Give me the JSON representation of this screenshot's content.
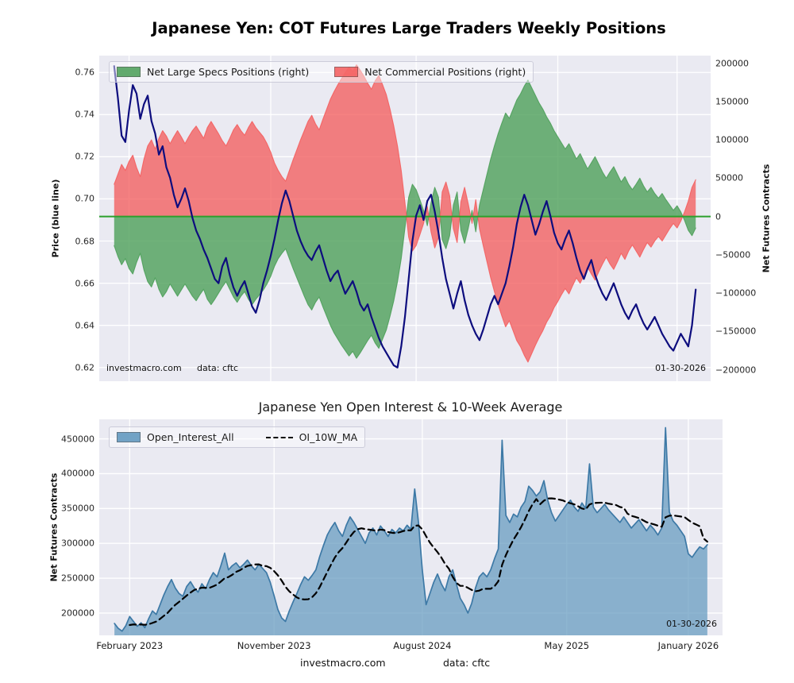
{
  "page": {
    "footer_watermark": "investmacro.com",
    "footer_source": "data: cftc"
  },
  "top_chart": {
    "watermark": "investmacro.com",
    "source": "data: cftc",
    "date_stamp": "01-30-2026"
  },
  "bottom_chart": {
    "date_stamp": "01-30-2026"
  },
  "chart_data": [
    {
      "type": "area+line",
      "title": "Japanese Yen: COT Futures Large Traders Weekly Positions",
      "x": {
        "unit": "weeks",
        "min": -4,
        "max": 160,
        "tick_positions": [
          4,
          42,
          81,
          119,
          151
        ],
        "tick_labels": [
          "February 2023",
          "November 2023",
          "August 2024",
          "May 2025",
          "January 2026"
        ],
        "tick_labels_shown": false
      },
      "left_axis": {
        "label": "Price (blue line)",
        "lim": [
          0.6135,
          0.768
        ],
        "ticks": [
          0.62,
          0.64,
          0.66,
          0.68,
          0.7,
          0.72,
          0.74,
          0.76
        ],
        "tick_labels": [
          "0.62",
          "0.64",
          "0.66",
          "0.68",
          "0.70",
          "0.72",
          "0.74",
          "0.76"
        ]
      },
      "right_axis": {
        "label": "Net Futures Contracts",
        "lim": [
          -215000,
          210000
        ],
        "ticks": [
          -200000,
          -150000,
          -100000,
          -50000,
          0,
          50000,
          100000,
          150000,
          200000
        ],
        "tick_labels": [
          "−200000",
          "−150000",
          "−100000",
          "−50000",
          "0",
          "50000",
          "100000",
          "150000",
          "200000"
        ]
      },
      "zero_line": {
        "axis": "right",
        "value": 0,
        "color": "#2ca02c"
      },
      "series": [
        {
          "name": "Net Large Specs Positions (right)",
          "type": "area",
          "axis": "right",
          "color": "#4ea05a",
          "fill_alpha": 0.8,
          "values": [
            -38000,
            -52000,
            -63000,
            -55000,
            -68000,
            -75000,
            -60000,
            -48000,
            -70000,
            -85000,
            -92000,
            -80000,
            -95000,
            -105000,
            -98000,
            -88000,
            -96000,
            -104000,
            -96000,
            -88000,
            -96000,
            -104000,
            -110000,
            -102000,
            -95000,
            -108000,
            -115000,
            -108000,
            -100000,
            -92000,
            -85000,
            -95000,
            -105000,
            -112000,
            -104000,
            -98000,
            -108000,
            -115000,
            -108000,
            -102000,
            -96000,
            -88000,
            -78000,
            -65000,
            -55000,
            -48000,
            -42000,
            -55000,
            -68000,
            -80000,
            -92000,
            -104000,
            -115000,
            -122000,
            -112000,
            -105000,
            -118000,
            -130000,
            -142000,
            -152000,
            -160000,
            -168000,
            -175000,
            -182000,
            -176000,
            -185000,
            -178000,
            -170000,
            -162000,
            -155000,
            -165000,
            -172000,
            -160000,
            -148000,
            -130000,
            -110000,
            -85000,
            -55000,
            -15000,
            25000,
            42000,
            35000,
            22000,
            8000,
            -12000,
            18000,
            38000,
            25000,
            -30000,
            -42000,
            -25000,
            15000,
            32000,
            -18000,
            -35000,
            -15000,
            8000,
            -20000,
            15000,
            35000,
            55000,
            75000,
            92000,
            108000,
            122000,
            135000,
            128000,
            140000,
            152000,
            160000,
            170000,
            178000,
            168000,
            158000,
            148000,
            140000,
            130000,
            122000,
            112000,
            104000,
            96000,
            88000,
            95000,
            85000,
            75000,
            82000,
            72000,
            62000,
            70000,
            78000,
            68000,
            58000,
            50000,
            58000,
            65000,
            55000,
            45000,
            52000,
            42000,
            35000,
            42000,
            50000,
            40000,
            32000,
            38000,
            30000,
            24000,
            30000,
            22000,
            15000,
            8000,
            14000,
            6000,
            -5000,
            -18000,
            -25000,
            -15000
          ]
        },
        {
          "name": "Net Commercial Positions (right)",
          "type": "area",
          "axis": "right",
          "color": "#f45f5f",
          "fill_alpha": 0.78,
          "values": [
            42000,
            55000,
            68000,
            60000,
            72000,
            80000,
            64000,
            52000,
            75000,
            92000,
            100000,
            88000,
            102000,
            112000,
            105000,
            95000,
            104000,
            112000,
            104000,
            95000,
            104000,
            112000,
            118000,
            110000,
            102000,
            116000,
            124000,
            116000,
            108000,
            99000,
            92000,
            102000,
            113000,
            120000,
            112000,
            106000,
            116000,
            124000,
            116000,
            110000,
            104000,
            95000,
            84000,
            70000,
            60000,
            52000,
            46000,
            60000,
            74000,
            87000,
            100000,
            112000,
            124000,
            132000,
            121000,
            113000,
            127000,
            140000,
            153000,
            163000,
            172000,
            180000,
            188000,
            195000,
            189000,
            198000,
            191000,
            183000,
            174000,
            166000,
            177000,
            184000,
            172000,
            159000,
            140000,
            118000,
            92000,
            60000,
            18000,
            -27000,
            -45000,
            -38000,
            -24000,
            -9000,
            13000,
            -20000,
            -41000,
            -27000,
            32000,
            45000,
            27000,
            -16000,
            -34000,
            19000,
            38000,
            16000,
            -9000,
            22000,
            -16000,
            -38000,
            -59000,
            -80000,
            -98000,
            -115000,
            -130000,
            -144000,
            -136000,
            -149000,
            -162000,
            -170000,
            -181000,
            -190000,
            -179000,
            -168000,
            -158000,
            -149000,
            -138000,
            -130000,
            -119000,
            -111000,
            -102000,
            -94000,
            -101000,
            -90000,
            -80000,
            -87000,
            -77000,
            -66000,
            -75000,
            -83000,
            -72000,
            -62000,
            -53000,
            -62000,
            -69000,
            -59000,
            -48000,
            -56000,
            -45000,
            -37000,
            -45000,
            -53000,
            -43000,
            -34000,
            -40000,
            -32000,
            -26000,
            -32000,
            -24000,
            -16000,
            -9000,
            -15000,
            -6000,
            6000,
            20000,
            38000,
            48000
          ]
        },
        {
          "name": "Price",
          "type": "line",
          "axis": "left",
          "color": "#0d0d7e",
          "width": 2.2,
          "values": [
            0.763,
            0.748,
            0.73,
            0.727,
            0.742,
            0.754,
            0.75,
            0.738,
            0.745,
            0.749,
            0.737,
            0.731,
            0.721,
            0.725,
            0.715,
            0.71,
            0.702,
            0.696,
            0.7,
            0.705,
            0.699,
            0.691,
            0.685,
            0.681,
            0.676,
            0.672,
            0.667,
            0.662,
            0.66,
            0.668,
            0.672,
            0.664,
            0.658,
            0.654,
            0.658,
            0.661,
            0.655,
            0.649,
            0.646,
            0.652,
            0.66,
            0.666,
            0.673,
            0.681,
            0.69,
            0.698,
            0.704,
            0.699,
            0.692,
            0.685,
            0.68,
            0.676,
            0.673,
            0.671,
            0.675,
            0.678,
            0.672,
            0.666,
            0.661,
            0.664,
            0.666,
            0.66,
            0.655,
            0.658,
            0.661,
            0.656,
            0.65,
            0.647,
            0.65,
            0.644,
            0.639,
            0.634,
            0.63,
            0.627,
            0.624,
            0.621,
            0.62,
            0.63,
            0.644,
            0.662,
            0.68,
            0.692,
            0.697,
            0.69,
            0.699,
            0.702,
            0.694,
            0.684,
            0.672,
            0.662,
            0.655,
            0.648,
            0.655,
            0.661,
            0.652,
            0.645,
            0.64,
            0.636,
            0.633,
            0.638,
            0.644,
            0.65,
            0.654,
            0.65,
            0.655,
            0.66,
            0.668,
            0.677,
            0.688,
            0.696,
            0.702,
            0.697,
            0.69,
            0.683,
            0.688,
            0.694,
            0.699,
            0.692,
            0.684,
            0.679,
            0.676,
            0.681,
            0.685,
            0.679,
            0.672,
            0.666,
            0.662,
            0.667,
            0.671,
            0.664,
            0.659,
            0.655,
            0.652,
            0.656,
            0.66,
            0.655,
            0.65,
            0.646,
            0.643,
            0.647,
            0.65,
            0.645,
            0.641,
            0.638,
            0.641,
            0.644,
            0.64,
            0.636,
            0.633,
            0.63,
            0.628,
            0.632,
            0.636,
            0.633,
            0.63,
            0.64,
            0.657
          ]
        }
      ]
    },
    {
      "type": "area+line",
      "title": "Japanese Yen Open Interest & 10-Week Average",
      "x": {
        "unit": "weeks",
        "min": -4,
        "max": 160,
        "tick_positions": [
          4,
          42,
          81,
          119,
          151
        ],
        "tick_labels": [
          "February 2023",
          "November 2023",
          "August 2024",
          "May 2025",
          "January 2026"
        ],
        "tick_labels_shown": true
      },
      "left_axis": {
        "label": "Net Futures Contracts",
        "lim": [
          168000,
          478000
        ],
        "ticks": [
          200000,
          250000,
          300000,
          350000,
          400000,
          450000
        ],
        "tick_labels": [
          "200000",
          "250000",
          "300000",
          "350000",
          "400000",
          "450000"
        ]
      },
      "series": [
        {
          "name": "Open_Interest_All",
          "type": "area",
          "axis": "left",
          "color": "#5f97bd",
          "edge_color": "#3d79a6",
          "fill_alpha": 0.7,
          "baseline": "bottom",
          "values": [
            185000,
            178000,
            174000,
            182000,
            195000,
            188000,
            181000,
            186000,
            179000,
            192000,
            203000,
            198000,
            212000,
            226000,
            238000,
            248000,
            236000,
            228000,
            224000,
            238000,
            245000,
            236000,
            230000,
            242000,
            235000,
            248000,
            258000,
            252000,
            268000,
            286000,
            262000,
            268000,
            272000,
            265000,
            270000,
            276000,
            268000,
            262000,
            270000,
            264000,
            258000,
            244000,
            225000,
            205000,
            193000,
            188000,
            203000,
            216000,
            228000,
            241000,
            252000,
            247000,
            254000,
            262000,
            281000,
            297000,
            312000,
            322000,
            330000,
            318000,
            310000,
            326000,
            338000,
            330000,
            320000,
            310000,
            300000,
            315000,
            322000,
            312000,
            325000,
            318000,
            310000,
            320000,
            315000,
            322000,
            318000,
            326000,
            320000,
            378000,
            330000,
            262000,
            212000,
            228000,
            244000,
            256000,
            242000,
            232000,
            252000,
            262000,
            241000,
            221000,
            212000,
            200000,
            214000,
            236000,
            252000,
            258000,
            252000,
            262000,
            278000,
            292000,
            448000,
            340000,
            330000,
            342000,
            338000,
            352000,
            360000,
            382000,
            376000,
            368000,
            374000,
            390000,
            362000,
            344000,
            332000,
            340000,
            348000,
            356000,
            362000,
            352000,
            346000,
            358000,
            350000,
            414000,
            352000,
            344000,
            350000,
            356000,
            348000,
            342000,
            336000,
            330000,
            338000,
            330000,
            322000,
            328000,
            334000,
            326000,
            318000,
            326000,
            320000,
            312000,
            322000,
            466000,
            345000,
            332000,
            326000,
            318000,
            310000,
            285000,
            280000,
            288000,
            295000,
            292000,
            298000
          ]
        },
        {
          "name": "OI_10W_MA",
          "type": "ma-dashed",
          "axis": "left",
          "color": "#000000",
          "window": 10,
          "derived_from": "Open_Interest_All",
          "width": 2.2
        }
      ]
    }
  ]
}
